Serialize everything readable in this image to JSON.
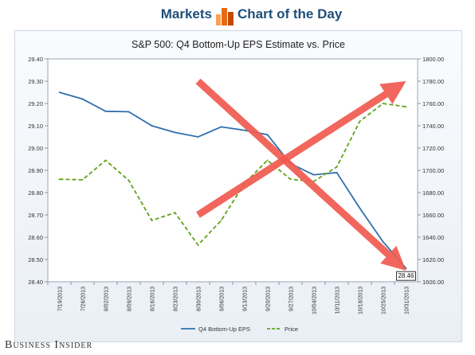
{
  "header": {
    "section": "Markets",
    "feature": "Chart of the Day",
    "logo_colors": [
      "#f6a45a",
      "#e76a16",
      "#c44a00"
    ]
  },
  "footer": {
    "brand": "Business Insider"
  },
  "colors": {
    "eps": "#2f6fae",
    "price": "#62a21a",
    "arrow": "#f05a4f"
  },
  "chart_data": {
    "type": "line",
    "title": "S&P 500: Q4 Bottom-Up EPS Estimate vs. Price",
    "x": [
      "7/19/2013",
      "7/26/2013",
      "8/02/2013",
      "8/09/2013",
      "8/16/2013",
      "8/23/2013",
      "8/30/2013",
      "9/06/2013",
      "9/13/2013",
      "9/20/2013",
      "9/27/2013",
      "10/04/2013",
      "10/11/2013",
      "10/18/2013",
      "10/25/2013",
      "10/31/2013"
    ],
    "y_left": {
      "range": [
        28.4,
        29.4
      ],
      "ticks": [
        "28.40",
        "28.50",
        "28.60",
        "28.70",
        "28.80",
        "28.90",
        "29.00",
        "29.10",
        "29.20",
        "29.30",
        "29.40"
      ]
    },
    "y_right": {
      "range": [
        1600,
        1800
      ],
      "ticks": [
        "1600.00",
        "1620.00",
        "1640.00",
        "1660.00",
        "1680.00",
        "1700.00",
        "1720.00",
        "1740.00",
        "1760.00",
        "1780.00",
        "1800.00"
      ]
    },
    "series": [
      {
        "name": "Q4 Bottom-Up EPS",
        "axis": "left",
        "style": "solid",
        "values": [
          29.25,
          29.22,
          29.165,
          29.163,
          29.1,
          29.07,
          29.05,
          29.095,
          29.08,
          29.06,
          28.93,
          28.88,
          28.89,
          28.73,
          28.58,
          28.46
        ]
      },
      {
        "name": "Price",
        "axis": "right",
        "style": "dashed",
        "values": [
          1692,
          1691.5,
          1709,
          1691,
          1655,
          1662,
          1633,
          1655,
          1688,
          1709,
          1692,
          1690,
          1703,
          1744,
          1760,
          1757
        ]
      }
    ],
    "end_label": "28.46",
    "annotations": [
      {
        "kind": "arrow",
        "direction": "up-right",
        "from": [
          "8/30/2013",
          1660
        ],
        "to": [
          "10/31/2013",
          1780
        ]
      },
      {
        "kind": "arrow",
        "direction": "down-right",
        "from": [
          "8/30/2013",
          1780
        ],
        "to": [
          "10/31/2013",
          1610
        ]
      }
    ],
    "grid": false,
    "legend_position": "bottom"
  }
}
